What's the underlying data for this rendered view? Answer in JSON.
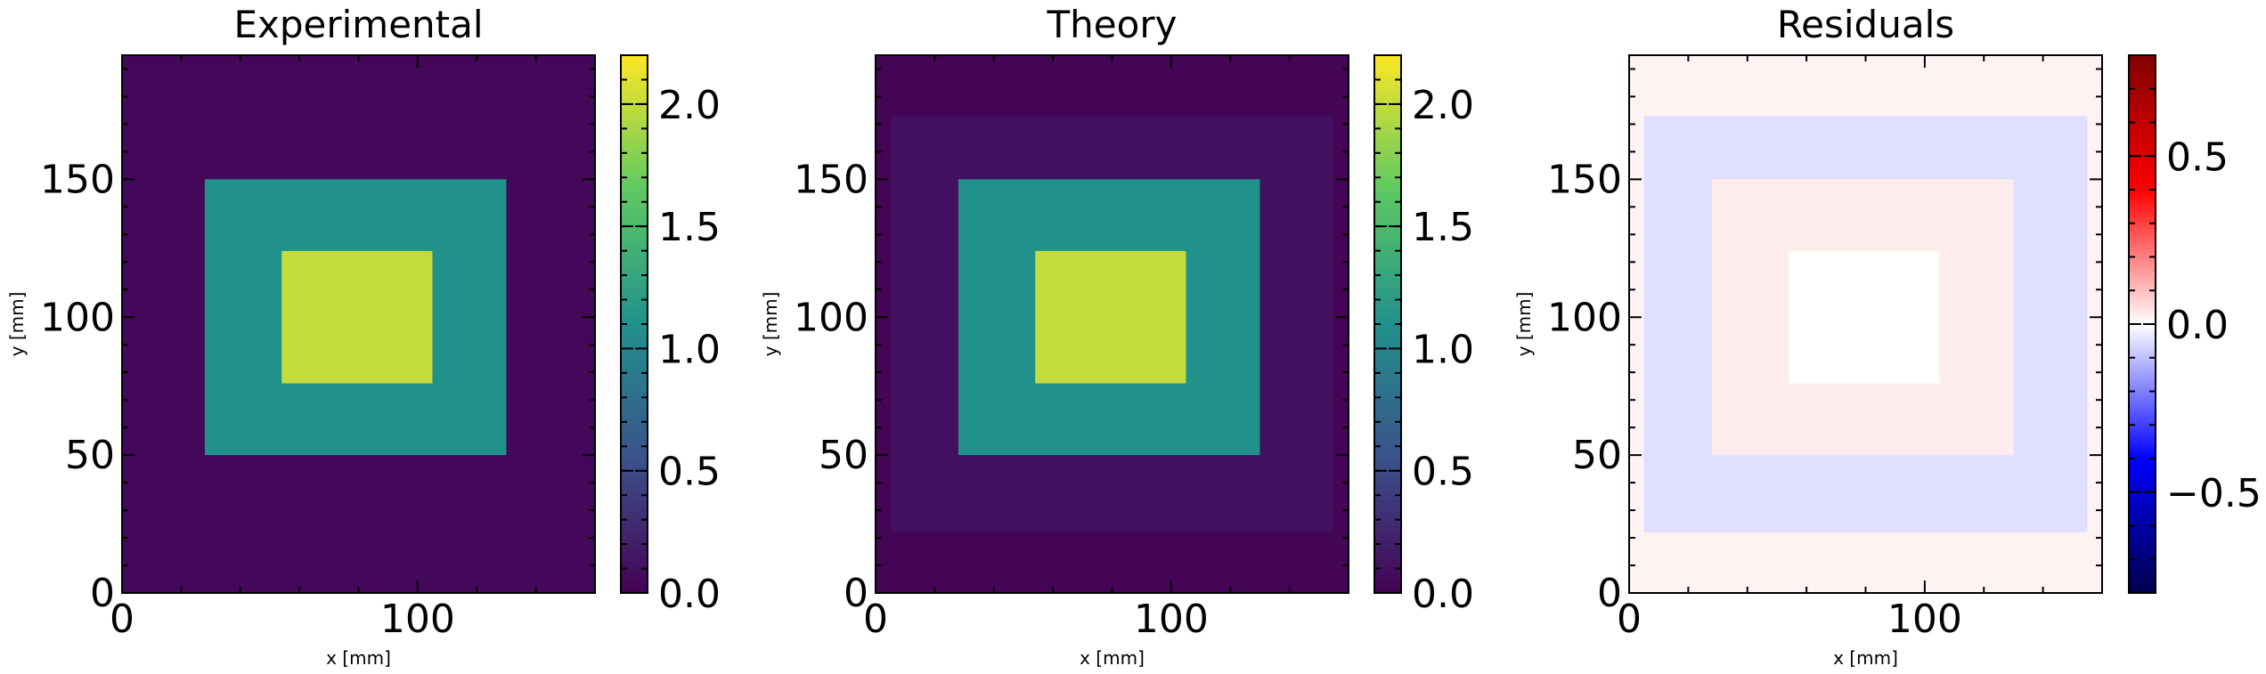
{
  "chart_data": [
    {
      "type": "heatmap",
      "title": "Experimental",
      "xlabel": "x [mm]",
      "ylabel": "y [mm]",
      "xlim": [
        0,
        160
      ],
      "ylim": [
        0,
        195
      ],
      "xticks": [
        "0",
        "100"
      ],
      "yticks": [
        "0",
        "50",
        "100",
        "150"
      ],
      "colormap": "viridis",
      "colorbar": {
        "range": [
          0.0,
          2.2
        ],
        "ticks": [
          "0.0",
          "0.5",
          "1.0",
          "1.5",
          "2.0"
        ]
      },
      "regions": [
        {
          "label": "background",
          "x": [
            0,
            160
          ],
          "y": [
            0,
            195
          ],
          "value": 0.05
        },
        {
          "label": "outer square",
          "x": [
            28,
            130
          ],
          "y": [
            50,
            150
          ],
          "value": 1.1
        },
        {
          "label": "inner square",
          "x": [
            54,
            105
          ],
          "y": [
            76,
            124
          ],
          "value": 2.0
        }
      ]
    },
    {
      "type": "heatmap",
      "title": "Theory",
      "xlabel": "x [mm]",
      "ylabel": "y [mm]",
      "xlim": [
        0,
        160
      ],
      "ylim": [
        0,
        195
      ],
      "xticks": [
        "0",
        "100"
      ],
      "yticks": [
        "0",
        "50",
        "100",
        "150"
      ],
      "colormap": "viridis",
      "colorbar": {
        "range": [
          0.0,
          2.2
        ],
        "ticks": [
          "0.0",
          "0.5",
          "1.0",
          "1.5",
          "2.0"
        ]
      },
      "regions": [
        {
          "label": "background",
          "x": [
            0,
            160
          ],
          "y": [
            0,
            195
          ],
          "value": 0.03
        },
        {
          "label": "halo",
          "x": [
            5,
            155
          ],
          "y": [
            22,
            173
          ],
          "value": 0.1
        },
        {
          "label": "outer square",
          "x": [
            28,
            130
          ],
          "y": [
            50,
            150
          ],
          "value": 1.1
        },
        {
          "label": "inner square",
          "x": [
            54,
            105
          ],
          "y": [
            76,
            124
          ],
          "value": 2.0
        }
      ]
    },
    {
      "type": "heatmap",
      "title": "Residuals",
      "xlabel": "x [mm]",
      "ylabel": "y [mm]",
      "xlim": [
        0,
        160
      ],
      "ylim": [
        0,
        195
      ],
      "xticks": [
        "0",
        "100"
      ],
      "yticks": [
        "0",
        "50",
        "100",
        "150"
      ],
      "colormap": "seismic",
      "colorbar": {
        "range": [
          -0.8,
          0.8
        ],
        "ticks": [
          "−0.5",
          "0.0",
          "0.5"
        ]
      },
      "regions": [
        {
          "label": "background",
          "x": [
            0,
            160
          ],
          "y": [
            0,
            195
          ],
          "value": 0.02
        },
        {
          "label": "halo",
          "x": [
            5,
            155
          ],
          "y": [
            22,
            173
          ],
          "value": -0.05
        },
        {
          "label": "outer square",
          "x": [
            28,
            130
          ],
          "y": [
            50,
            150
          ],
          "value": 0.03
        },
        {
          "label": "inner square",
          "x": [
            54,
            105
          ],
          "y": [
            76,
            124
          ],
          "value": 0.0
        }
      ]
    }
  ]
}
